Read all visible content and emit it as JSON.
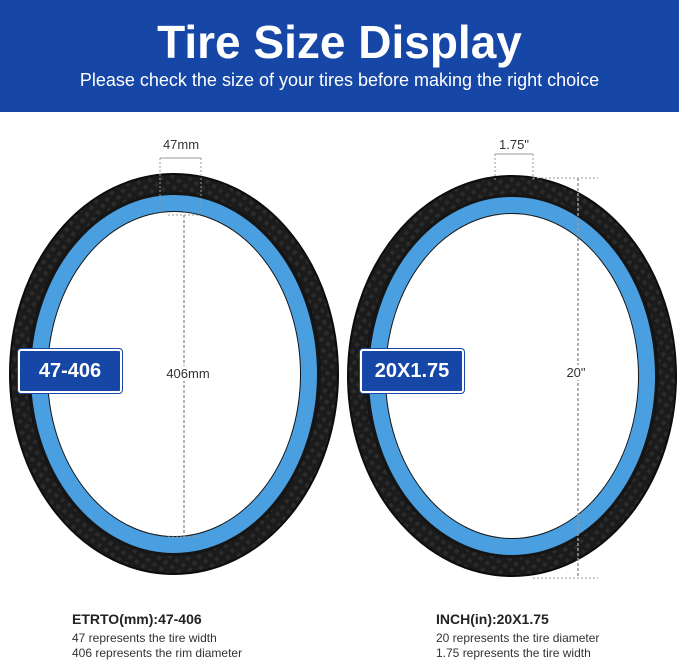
{
  "header": {
    "title": "Tire Size Display",
    "subtitle": "Please check the size of your tires before making the right choice"
  },
  "left_tire": {
    "badge": "47-406",
    "width_label": "47mm",
    "diameter_label": "406mm",
    "caption_title": "ETRTO(mm):47-406",
    "caption_lines": [
      "47 represents the tire width",
      "406 represents the rim diameter"
    ]
  },
  "right_tire": {
    "badge": "20X1.75",
    "width_label": "1.75\"",
    "diameter_label": "20\"",
    "caption_title": "INCH(in):20X1.75",
    "caption_lines": [
      "20 represents the tire diameter",
      "1.75 represents the tire width"
    ]
  },
  "colors": {
    "banner": "#1747a6",
    "rim": "#4a9fe0",
    "tire": "#1b1b1b"
  }
}
